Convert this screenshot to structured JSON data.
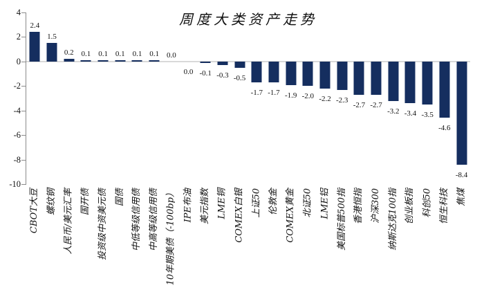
{
  "chart_data": {
    "type": "bar",
    "title": "周度大类资产走势",
    "xlabel": "",
    "ylabel": "",
    "ylim": [
      -10,
      4
    ],
    "yticks": [
      4,
      2,
      0,
      -2,
      -4,
      -6,
      -8,
      -10
    ],
    "grid": false,
    "legend": false,
    "bar_color": "#152e5f",
    "zero_line_color": "#d9d9d9",
    "axis_color": "#8a8a8a",
    "points": [
      {
        "name": "CBOT大豆",
        "value": 2.4,
        "label": "2.4"
      },
      {
        "name": "螺纹钢",
        "value": 1.5,
        "label": "1.5"
      },
      {
        "name": "人民币/美元汇率",
        "value": 0.2,
        "label": "0.2"
      },
      {
        "name": "国开债",
        "value": 0.1,
        "label": "0.1"
      },
      {
        "name": "投资级中资美元债",
        "value": 0.1,
        "label": "0.1"
      },
      {
        "name": "国债",
        "value": 0.1,
        "label": "0.1"
      },
      {
        "name": "中低等级信用债",
        "value": 0.1,
        "label": "0.1"
      },
      {
        "name": "中高等级信用债",
        "value": 0.1,
        "label": "0.1"
      },
      {
        "name": "10年期美债（-100bp）",
        "value": 0.0,
        "label": "0.0"
      },
      {
        "name": "IPE布油",
        "value": 0.0,
        "label": "0.0",
        "label_below": true
      },
      {
        "name": "美元指数",
        "value": -0.1,
        "label": "-0.1"
      },
      {
        "name": "LME铜",
        "value": -0.3,
        "label": "-0.3"
      },
      {
        "name": "COMEX白银",
        "value": -0.5,
        "label": "-0.5"
      },
      {
        "name": "上证50",
        "value": -1.7,
        "label": "-1.7"
      },
      {
        "name": "伦敦金",
        "value": -1.7,
        "label": "-1.7"
      },
      {
        "name": "COMEX黄金",
        "value": -1.9,
        "label": "-1.9"
      },
      {
        "name": "北证50",
        "value": -2.0,
        "label": "-2.0"
      },
      {
        "name": "LME铝",
        "value": -2.2,
        "label": "-2.2"
      },
      {
        "name": "美国标普500指",
        "value": -2.3,
        "label": "-2.3"
      },
      {
        "name": "香港恒指",
        "value": -2.7,
        "label": "-2.7"
      },
      {
        "name": "沪深300",
        "value": -2.7,
        "label": "-2.7"
      },
      {
        "name": "纳斯达克100指",
        "value": -3.2,
        "label": "-3.2"
      },
      {
        "name": "创业板指",
        "value": -3.4,
        "label": "-3.4"
      },
      {
        "name": "科创50",
        "value": -3.5,
        "label": "-3.5"
      },
      {
        "name": "恒生科技",
        "value": -4.6,
        "label": "-4.6"
      },
      {
        "name": "焦煤",
        "value": -8.4,
        "label": "-8.4"
      }
    ]
  }
}
